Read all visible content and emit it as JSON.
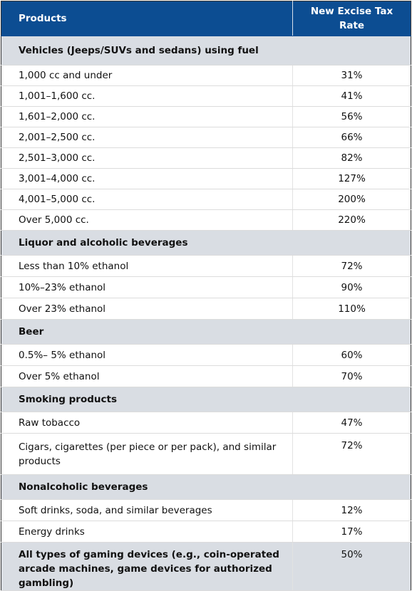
{
  "table": {
    "header": [
      "Products",
      "New Excise Tax Rate"
    ],
    "groups": [
      {
        "title": "Vehicles (Jeeps/SUVs and sedans) using fuel",
        "rows": [
          [
            "1,000 cc and under",
            "31%"
          ],
          [
            "1,001–1,600 cc.",
            "41%"
          ],
          [
            "1,601–2,000 cc.",
            "56%"
          ],
          [
            "2,001–2,500 cc.",
            "66%"
          ],
          [
            "2,501–3,000 cc.",
            "82%"
          ],
          [
            "3,001–4,000 cc.",
            "127%"
          ],
          [
            "4,001–5,000 cc.",
            "200%"
          ],
          [
            "Over 5,000 cc.",
            "220%"
          ]
        ]
      },
      {
        "title": "Liquor and alcoholic beverages",
        "rows": [
          [
            "Less than 10% ethanol",
            "72%"
          ],
          [
            "10%–23% ethanol",
            "90%"
          ],
          [
            "Over 23% ethanol",
            "110%"
          ]
        ]
      },
      {
        "title": "Beer",
        "rows": [
          [
            "0.5%– 5% ethanol",
            "60%"
          ],
          [
            "Over 5% ethanol",
            "70%"
          ]
        ]
      },
      {
        "title": "Smoking products",
        "rows": [
          [
            "Raw tobacco",
            "47%"
          ],
          [
            "Cigars, cigarettes (per piece or per pack), and similar products",
            "72%"
          ]
        ]
      },
      {
        "title": "Nonalcoholic beverages",
        "rows": [
          [
            "Soft drinks, soda, and similar beverages",
            "12%"
          ],
          [
            "Energy drinks",
            "17%"
          ]
        ]
      },
      {
        "title": "All types of gaming devices (e.g., coin-operated arcade machines, game devices for authorized gambling)",
        "rate": "50%"
      }
    ]
  }
}
